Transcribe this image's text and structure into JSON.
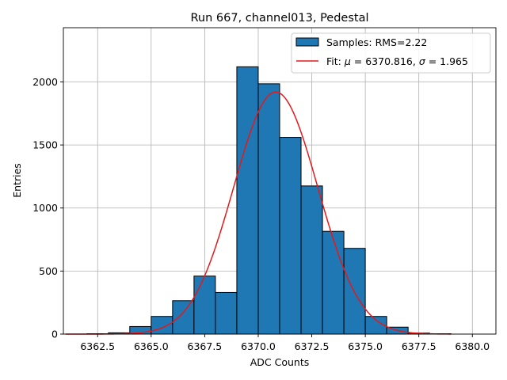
{
  "chart_data": {
    "type": "bar",
    "title": "Run 667, channel013, Pedestal",
    "xlabel": "ADC Counts",
    "ylabel": "Entries",
    "xlim": [
      6360.9,
      6381.1
    ],
    "ylim": [
      0,
      2430
    ],
    "grid": true,
    "legend_position": "top-right",
    "xticks": [
      6362.5,
      6365.0,
      6367.5,
      6370.0,
      6372.5,
      6375.0,
      6377.5,
      6380.0
    ],
    "xtick_labels": [
      "6362.5",
      "6365.0",
      "6367.5",
      "6370.0",
      "6372.5",
      "6375.0",
      "6377.5",
      "6380.0"
    ],
    "yticks": [
      0,
      500,
      1000,
      1500,
      2000
    ],
    "ytick_labels": [
      "0",
      "500",
      "1000",
      "1500",
      "2000"
    ],
    "histogram": {
      "label": "Samples: RMS=2.22",
      "color": "#1f77b4",
      "edgecolor": "#000000",
      "bins": [
        {
          "x0": 6362,
          "x1": 6363,
          "count": 3
        },
        {
          "x0": 6363,
          "x1": 6364,
          "count": 10
        },
        {
          "x0": 6364,
          "x1": 6365,
          "count": 60
        },
        {
          "x0": 6365,
          "x1": 6366,
          "count": 140
        },
        {
          "x0": 6366,
          "x1": 6367,
          "count": 265
        },
        {
          "x0": 6367,
          "x1": 6368,
          "count": 460
        },
        {
          "x0": 6368,
          "x1": 6369,
          "count": 330
        },
        {
          "x0": 6369,
          "x1": 6370,
          "count": 2120
        },
        {
          "x0": 6370,
          "x1": 6371,
          "count": 1985
        },
        {
          "x0": 6371,
          "x1": 6372,
          "count": 1560
        },
        {
          "x0": 6372,
          "x1": 6373,
          "count": 1175
        },
        {
          "x0": 6373,
          "x1": 6374,
          "count": 815
        },
        {
          "x0": 6374,
          "x1": 6375,
          "count": 680
        },
        {
          "x0": 6375,
          "x1": 6376,
          "count": 140
        },
        {
          "x0": 6376,
          "x1": 6377,
          "count": 55
        },
        {
          "x0": 6377,
          "x1": 6378,
          "count": 8
        },
        {
          "x0": 6378,
          "x1": 6379,
          "count": 3
        }
      ]
    },
    "fit": {
      "label_prefix": "Fit: ",
      "label_mu": "μ",
      "label_mid": " = 6370.816, ",
      "label_sigma": "σ",
      "label_end": " = 1.965",
      "color": "#e31a1c",
      "function": "gaussian",
      "mu": 6370.816,
      "sigma": 1.965,
      "amplitude": 1920,
      "x_range": [
        6361,
        6379
      ]
    }
  }
}
